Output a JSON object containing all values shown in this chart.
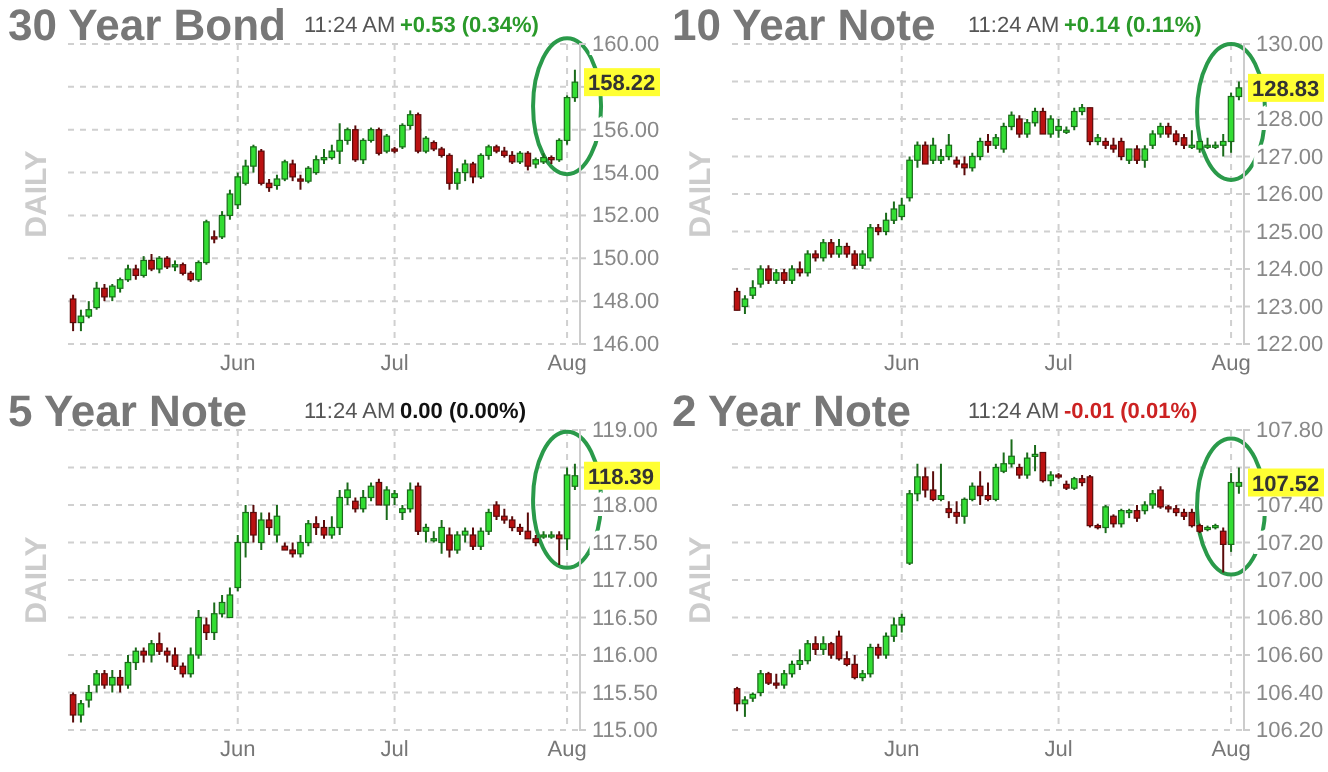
{
  "chart_data": [
    {
      "type": "candlestick",
      "title": "30 Year Bond",
      "grid": true,
      "annotations": [
        "11:24 AM",
        "+0.53 (0.34%)",
        "DAILY",
        {
          "text": "158.22",
          "y": 158.22
        }
      ],
      "categories": [
        null,
        null,
        null,
        null,
        null,
        null,
        null,
        null,
        null,
        null,
        null,
        null,
        null,
        null,
        null,
        null,
        null,
        null,
        null,
        null,
        null,
        "Jun",
        null,
        null,
        null,
        null,
        null,
        null,
        null,
        null,
        null,
        null,
        null,
        null,
        null,
        null,
        null,
        null,
        null,
        null,
        null,
        "Jul",
        null,
        null,
        null,
        null,
        null,
        null,
        null,
        null,
        null,
        null,
        null,
        null,
        null,
        null,
        null,
        null,
        null,
        null,
        null,
        null,
        null,
        "Aug",
        null
      ],
      "ylim": [
        146,
        160
      ],
      "yticks": [
        {
          "value": 146,
          "label": "146.00"
        },
        {
          "value": 148,
          "label": "148.00"
        },
        {
          "value": 150,
          "label": "150.00"
        },
        {
          "value": 152,
          "label": "152.00"
        },
        {
          "value": 154,
          "label": "154.00"
        },
        {
          "value": 156,
          "label": "156.00"
        },
        {
          "value": 158,
          "label": null
        },
        {
          "value": 160,
          "label": "160.00"
        }
      ],
      "ohlc": [
        [
          148.1,
          148.3,
          146.6,
          147.0
        ],
        [
          147.0,
          147.6,
          146.6,
          147.3
        ],
        [
          147.3,
          148.0,
          147.2,
          147.6
        ],
        [
          147.7,
          148.9,
          147.6,
          148.6
        ],
        [
          148.6,
          148.8,
          148.0,
          148.2
        ],
        [
          148.2,
          148.8,
          148.0,
          148.7
        ],
        [
          148.6,
          149.1,
          148.4,
          149.0
        ],
        [
          149.0,
          149.7,
          148.9,
          149.5
        ],
        [
          149.5,
          149.7,
          149.0,
          149.2
        ],
        [
          149.2,
          150.1,
          149.1,
          149.9
        ],
        [
          149.9,
          150.2,
          149.4,
          149.5
        ],
        [
          149.5,
          150.1,
          149.3,
          150.0
        ],
        [
          150.0,
          150.1,
          149.5,
          149.6
        ],
        [
          149.6,
          149.9,
          149.4,
          149.7
        ],
        [
          149.7,
          149.8,
          149.2,
          149.3
        ],
        [
          149.3,
          149.4,
          148.9,
          149.0
        ],
        [
          149.0,
          149.9,
          148.9,
          149.8
        ],
        [
          149.8,
          151.8,
          149.7,
          151.7
        ],
        [
          151.0,
          151.3,
          150.7,
          150.9
        ],
        [
          151.0,
          152.2,
          150.9,
          152.0
        ],
        [
          152.0,
          153.2,
          151.8,
          153.0
        ],
        [
          152.5,
          154.0,
          152.3,
          153.8
        ],
        [
          153.5,
          154.6,
          153.4,
          154.3
        ],
        [
          154.3,
          155.3,
          154.0,
          155.2
        ],
        [
          155.0,
          155.1,
          153.4,
          153.5
        ],
        [
          153.5,
          153.7,
          153.1,
          153.3
        ],
        [
          153.4,
          153.9,
          153.2,
          153.7
        ],
        [
          153.7,
          154.6,
          153.6,
          154.5
        ],
        [
          154.4,
          154.6,
          153.6,
          153.8
        ],
        [
          153.7,
          153.9,
          153.2,
          153.6
        ],
        [
          153.6,
          154.3,
          153.5,
          154.2
        ],
        [
          154.0,
          154.8,
          153.9,
          154.6
        ],
        [
          154.6,
          155.1,
          154.4,
          154.7
        ],
        [
          154.7,
          155.3,
          154.6,
          155.0
        ],
        [
          155.0,
          156.3,
          154.4,
          155.5
        ],
        [
          155.5,
          156.1,
          155.3,
          156.0
        ],
        [
          156.0,
          156.2,
          154.5,
          154.6
        ],
        [
          154.6,
          155.6,
          154.4,
          155.5
        ],
        [
          155.5,
          156.1,
          155.4,
          156.0
        ],
        [
          156.0,
          156.1,
          154.8,
          154.9
        ],
        [
          155.0,
          155.8,
          154.9,
          155.7
        ],
        [
          155.1,
          155.2,
          154.9,
          155.0
        ],
        [
          155.2,
          156.3,
          155.1,
          156.2
        ],
        [
          156.2,
          156.9,
          156.0,
          156.7
        ],
        [
          156.7,
          156.8,
          154.9,
          155.0
        ],
        [
          155.0,
          155.7,
          154.9,
          155.6
        ],
        [
          155.4,
          155.5,
          155.0,
          155.1
        ],
        [
          155.1,
          155.2,
          154.7,
          154.8
        ],
        [
          154.8,
          154.9,
          153.2,
          153.5
        ],
        [
          153.5,
          154.2,
          153.2,
          154.0
        ],
        [
          154.0,
          154.6,
          153.6,
          154.4
        ],
        [
          154.4,
          154.5,
          153.5,
          153.8
        ],
        [
          153.8,
          154.9,
          153.7,
          154.8
        ],
        [
          154.8,
          155.3,
          154.6,
          155.2
        ],
        [
          155.2,
          155.3,
          154.9,
          155.0
        ],
        [
          155.0,
          155.2,
          154.7,
          154.8
        ],
        [
          154.8,
          155.0,
          154.4,
          154.5
        ],
        [
          154.5,
          155.0,
          154.4,
          154.9
        ],
        [
          154.9,
          155.0,
          154.1,
          154.3
        ],
        [
          154.4,
          154.7,
          154.2,
          154.6
        ],
        [
          154.5,
          154.9,
          154.4,
          154.7
        ],
        [
          154.7,
          154.8,
          154.4,
          154.6
        ],
        [
          154.6,
          155.6,
          154.5,
          155.5
        ],
        [
          155.5,
          157.6,
          155.3,
          157.5
        ],
        [
          157.5,
          158.8,
          157.3,
          158.22
        ]
      ]
    },
    {
      "type": "candlestick",
      "title": "10 Year Note",
      "grid": true,
      "annotations": [
        "11:24 AM",
        "+0.14 (0.11%)",
        "DAILY",
        {
          "text": "128.83",
          "y": 128.83
        }
      ],
      "categories": [
        null,
        null,
        null,
        null,
        null,
        null,
        null,
        null,
        null,
        null,
        null,
        null,
        null,
        null,
        null,
        null,
        null,
        null,
        null,
        null,
        null,
        "Jun",
        null,
        null,
        null,
        null,
        null,
        null,
        null,
        null,
        null,
        null,
        null,
        null,
        null,
        null,
        null,
        null,
        null,
        null,
        null,
        "Jul",
        null,
        null,
        null,
        null,
        null,
        null,
        null,
        null,
        null,
        null,
        null,
        null,
        null,
        null,
        null,
        null,
        null,
        null,
        null,
        null,
        null,
        "Aug",
        null
      ],
      "ylim": [
        122,
        130
      ],
      "yticks": [
        {
          "value": 122,
          "label": "122.00"
        },
        {
          "value": 123,
          "label": "123.00"
        },
        {
          "value": 124,
          "label": "124.00"
        },
        {
          "value": 125,
          "label": "125.00"
        },
        {
          "value": 126,
          "label": "126.00"
        },
        {
          "value": 127,
          "label": "127.00"
        },
        {
          "value": 128,
          "label": "128.00"
        },
        {
          "value": 129,
          "label": null
        },
        {
          "value": 130,
          "label": "130.00"
        }
      ],
      "ohlc": [
        [
          123.4,
          123.5,
          122.9,
          122.9
        ],
        [
          123.0,
          123.3,
          122.8,
          123.2
        ],
        [
          123.3,
          123.7,
          123.2,
          123.5
        ],
        [
          123.6,
          124.1,
          123.5,
          124.0
        ],
        [
          124.0,
          124.1,
          123.6,
          123.7
        ],
        [
          123.7,
          124.0,
          123.6,
          123.9
        ],
        [
          123.9,
          124.0,
          123.6,
          123.7
        ],
        [
          123.7,
          124.1,
          123.6,
          124.0
        ],
        [
          124.0,
          124.2,
          123.8,
          123.9
        ],
        [
          123.9,
          124.5,
          123.8,
          124.4
        ],
        [
          124.4,
          124.5,
          124.2,
          124.3
        ],
        [
          124.3,
          124.8,
          124.2,
          124.7
        ],
        [
          124.7,
          124.8,
          124.3,
          124.4
        ],
        [
          124.4,
          124.8,
          124.3,
          124.6
        ],
        [
          124.6,
          124.7,
          124.3,
          124.4
        ],
        [
          124.4,
          124.5,
          124.0,
          124.1
        ],
        [
          124.1,
          124.5,
          124.0,
          124.4
        ],
        [
          124.3,
          125.2,
          124.2,
          125.1
        ],
        [
          125.1,
          125.2,
          124.9,
          125.0
        ],
        [
          125.0,
          125.5,
          124.9,
          125.3
        ],
        [
          125.3,
          125.8,
          125.2,
          125.6
        ],
        [
          125.4,
          125.9,
          125.3,
          125.7
        ],
        [
          125.9,
          127.0,
          125.8,
          126.9
        ],
        [
          126.9,
          127.4,
          126.7,
          127.3
        ],
        [
          127.3,
          127.4,
          126.8,
          126.8
        ],
        [
          126.9,
          127.5,
          126.8,
          127.3
        ],
        [
          126.9,
          127.2,
          126.8,
          127.0
        ],
        [
          127.0,
          127.6,
          126.9,
          127.3
        ],
        [
          126.9,
          127.0,
          126.7,
          126.8
        ],
        [
          126.8,
          127.0,
          126.5,
          126.7
        ],
        [
          126.7,
          127.1,
          126.6,
          127.0
        ],
        [
          127.0,
          127.5,
          126.9,
          127.4
        ],
        [
          127.4,
          127.6,
          127.1,
          127.3
        ],
        [
          127.3,
          127.6,
          127.2,
          127.5
        ],
        [
          127.2,
          127.9,
          127.1,
          127.8
        ],
        [
          127.8,
          128.2,
          127.7,
          128.1
        ],
        [
          128.0,
          128.1,
          127.5,
          127.6
        ],
        [
          127.6,
          128.0,
          127.5,
          127.9
        ],
        [
          127.9,
          128.3,
          127.8,
          128.2
        ],
        [
          128.2,
          128.3,
          127.6,
          127.6
        ],
        [
          127.6,
          128.1,
          127.5,
          128.0
        ],
        [
          127.7,
          128.0,
          127.5,
          127.8
        ],
        [
          127.7,
          127.8,
          127.6,
          127.7
        ],
        [
          127.8,
          128.3,
          127.7,
          128.2
        ],
        [
          128.2,
          128.4,
          128.1,
          128.3
        ],
        [
          128.3,
          128.3,
          127.3,
          127.4
        ],
        [
          127.4,
          127.6,
          127.3,
          127.5
        ],
        [
          127.4,
          127.5,
          127.2,
          127.3
        ],
        [
          127.3,
          127.5,
          127.1,
          127.2
        ],
        [
          127.4,
          127.5,
          126.9,
          127.0
        ],
        [
          126.9,
          127.2,
          126.8,
          127.2
        ],
        [
          127.2,
          127.3,
          126.8,
          126.9
        ],
        [
          126.9,
          127.3,
          126.7,
          127.2
        ],
        [
          127.3,
          127.7,
          127.2,
          127.6
        ],
        [
          127.6,
          127.9,
          127.5,
          127.8
        ],
        [
          127.8,
          127.9,
          127.5,
          127.6
        ],
        [
          127.6,
          127.7,
          127.3,
          127.4
        ],
        [
          127.5,
          127.6,
          127.2,
          127.3
        ],
        [
          127.3,
          127.7,
          127.2,
          127.3
        ],
        [
          127.2,
          127.4,
          127.1,
          127.4
        ],
        [
          127.3,
          127.5,
          127.2,
          127.3
        ],
        [
          127.3,
          127.4,
          127.2,
          127.3
        ],
        [
          127.3,
          127.6,
          127.0,
          127.4
        ],
        [
          127.4,
          128.7,
          127.1,
          128.6
        ],
        [
          128.6,
          129.0,
          128.5,
          128.83
        ]
      ]
    },
    {
      "type": "candlestick",
      "title": "5 Year Note",
      "grid": true,
      "annotations": [
        "11:24 AM",
        "0.00 (0.00%)",
        "DAILY",
        {
          "text": "118.39",
          "y": 118.39
        }
      ],
      "categories": [
        null,
        null,
        null,
        null,
        null,
        null,
        null,
        null,
        null,
        null,
        null,
        null,
        null,
        null,
        null,
        null,
        null,
        null,
        null,
        null,
        null,
        "Jun",
        null,
        null,
        null,
        null,
        null,
        null,
        null,
        null,
        null,
        null,
        null,
        null,
        null,
        null,
        null,
        null,
        null,
        null,
        null,
        "Jul",
        null,
        null,
        null,
        null,
        null,
        null,
        null,
        null,
        null,
        null,
        null,
        null,
        null,
        null,
        null,
        null,
        null,
        null,
        null,
        null,
        null,
        "Aug",
        null
      ],
      "ylim": [
        115,
        119
      ],
      "yticks": [
        {
          "value": 115,
          "label": "115.00"
        },
        {
          "value": 115.5,
          "label": "115.50"
        },
        {
          "value": 116,
          "label": "116.00"
        },
        {
          "value": 116.5,
          "label": "116.50"
        },
        {
          "value": 117,
          "label": "117.00"
        },
        {
          "value": 117.5,
          "label": "117.50"
        },
        {
          "value": 118,
          "label": "118.00"
        },
        {
          "value": 118.5,
          "label": null
        },
        {
          "value": 119,
          "label": "119.00"
        }
      ],
      "ohlc": [
        [
          115.47,
          115.5,
          115.1,
          115.2
        ],
        [
          115.2,
          115.4,
          115.1,
          115.35
        ],
        [
          115.4,
          115.6,
          115.3,
          115.5
        ],
        [
          115.6,
          115.8,
          115.5,
          115.75
        ],
        [
          115.75,
          115.8,
          115.55,
          115.6
        ],
        [
          115.6,
          115.8,
          115.5,
          115.7
        ],
        [
          115.7,
          115.8,
          115.5,
          115.6
        ],
        [
          115.6,
          116.0,
          115.55,
          115.9
        ],
        [
          115.9,
          116.1,
          115.8,
          116.05
        ],
        [
          116.05,
          116.1,
          115.9,
          116.0
        ],
        [
          116.0,
          116.2,
          115.9,
          116.15
        ],
        [
          116.15,
          116.3,
          116.0,
          116.05
        ],
        [
          116.05,
          116.1,
          115.9,
          116.0
        ],
        [
          116.0,
          116.1,
          115.8,
          115.85
        ],
        [
          115.85,
          115.9,
          115.7,
          115.75
        ],
        [
          115.75,
          116.1,
          115.7,
          116.0
        ],
        [
          116.0,
          116.6,
          115.95,
          116.5
        ],
        [
          116.4,
          116.5,
          116.2,
          116.3
        ],
        [
          116.3,
          116.7,
          116.2,
          116.55
        ],
        [
          116.55,
          116.8,
          116.5,
          116.7
        ],
        [
          116.5,
          116.9,
          116.5,
          116.8
        ],
        [
          116.9,
          117.6,
          116.85,
          117.5
        ],
        [
          117.5,
          118.0,
          117.3,
          117.9
        ],
        [
          117.9,
          118.0,
          117.5,
          117.6
        ],
        [
          117.5,
          117.9,
          117.4,
          117.8
        ],
        [
          117.8,
          117.9,
          117.6,
          117.7
        ],
        [
          117.6,
          118.0,
          117.5,
          117.85
        ],
        [
          117.45,
          117.5,
          117.4,
          117.4
        ],
        [
          117.4,
          117.5,
          117.3,
          117.35
        ],
        [
          117.35,
          117.6,
          117.3,
          117.5
        ],
        [
          117.5,
          117.8,
          117.45,
          117.75
        ],
        [
          117.75,
          117.85,
          117.6,
          117.7
        ],
        [
          117.7,
          117.8,
          117.55,
          117.6
        ],
        [
          117.6,
          117.85,
          117.55,
          117.7
        ],
        [
          117.7,
          118.2,
          117.6,
          118.1
        ],
        [
          118.1,
          118.3,
          118.0,
          118.2
        ],
        [
          118.05,
          118.1,
          117.9,
          117.95
        ],
        [
          117.95,
          118.2,
          117.9,
          118.1
        ],
        [
          118.1,
          118.3,
          118.05,
          118.25
        ],
        [
          118.3,
          118.35,
          118.0,
          118.0
        ],
        [
          118.0,
          118.25,
          117.8,
          118.2
        ],
        [
          118.1,
          118.2,
          118.0,
          118.15
        ],
        [
          117.9,
          118.0,
          117.8,
          117.95
        ],
        [
          117.95,
          118.3,
          117.9,
          118.2
        ],
        [
          118.25,
          118.3,
          117.6,
          117.65
        ],
        [
          117.65,
          117.75,
          117.5,
          117.7
        ],
        [
          117.55,
          117.65,
          117.5,
          117.55
        ],
        [
          117.5,
          117.8,
          117.35,
          117.7
        ],
        [
          117.6,
          117.7,
          117.3,
          117.4
        ],
        [
          117.4,
          117.65,
          117.35,
          117.6
        ],
        [
          117.6,
          117.7,
          117.5,
          117.65
        ],
        [
          117.6,
          117.7,
          117.4,
          117.45
        ],
        [
          117.45,
          117.7,
          117.4,
          117.65
        ],
        [
          117.65,
          117.95,
          117.6,
          117.9
        ],
        [
          118.0,
          118.05,
          117.8,
          117.85
        ],
        [
          117.85,
          117.95,
          117.75,
          117.8
        ],
        [
          117.8,
          117.85,
          117.65,
          117.7
        ],
        [
          117.7,
          117.75,
          117.6,
          117.65
        ],
        [
          117.65,
          117.9,
          117.55,
          117.55
        ],
        [
          117.55,
          117.6,
          117.45,
          117.5
        ],
        [
          117.6,
          117.65,
          117.55,
          117.6
        ],
        [
          117.6,
          117.65,
          117.55,
          117.6
        ],
        [
          117.6,
          117.65,
          117.2,
          117.55
        ],
        [
          117.55,
          118.5,
          117.4,
          118.4
        ],
        [
          118.25,
          118.55,
          118.2,
          118.39
        ]
      ]
    },
    {
      "type": "candlestick",
      "title": "2 Year Note",
      "grid": true,
      "annotations": [
        "11:24 AM",
        "-0.01 (0.01%)",
        "DAILY",
        {
          "text": "107.52",
          "y": 107.52
        }
      ],
      "categories": [
        null,
        null,
        null,
        null,
        null,
        null,
        null,
        null,
        null,
        null,
        null,
        null,
        null,
        null,
        null,
        null,
        null,
        null,
        null,
        null,
        null,
        "Jun",
        null,
        null,
        null,
        null,
        null,
        null,
        null,
        null,
        null,
        null,
        null,
        null,
        null,
        null,
        null,
        null,
        null,
        null,
        null,
        "Jul",
        null,
        null,
        null,
        null,
        null,
        null,
        null,
        null,
        null,
        null,
        null,
        null,
        null,
        null,
        null,
        null,
        null,
        null,
        null,
        null,
        null,
        "Aug",
        null
      ],
      "ylim": [
        106.2,
        107.8
      ],
      "yticks": [
        {
          "value": 106.2,
          "label": "106.20"
        },
        {
          "value": 106.4,
          "label": "106.40"
        },
        {
          "value": 106.6,
          "label": "106.60"
        },
        {
          "value": 106.8,
          "label": "106.80"
        },
        {
          "value": 107,
          "label": "107.00"
        },
        {
          "value": 107.2,
          "label": "107.20"
        },
        {
          "value": 107.4,
          "label": "107.40"
        },
        {
          "value": 107.6,
          "label": null
        },
        {
          "value": 107.8,
          "label": "107.80"
        }
      ],
      "ohlc": [
        [
          106.42,
          106.43,
          106.3,
          106.34
        ],
        [
          106.34,
          106.38,
          106.27,
          106.36
        ],
        [
          106.37,
          106.4,
          106.35,
          106.39
        ],
        [
          106.4,
          106.52,
          106.38,
          106.5
        ],
        [
          106.5,
          106.51,
          106.44,
          106.45
        ],
        [
          106.45,
          106.5,
          106.42,
          106.44
        ],
        [
          106.44,
          106.52,
          106.42,
          106.5
        ],
        [
          106.5,
          106.57,
          106.48,
          106.55
        ],
        [
          106.55,
          106.63,
          106.52,
          106.57
        ],
        [
          106.57,
          106.68,
          106.55,
          106.66
        ],
        [
          106.66,
          106.7,
          106.6,
          106.63
        ],
        [
          106.63,
          106.7,
          106.6,
          106.66
        ],
        [
          106.66,
          106.67,
          106.58,
          106.6
        ],
        [
          106.7,
          106.73,
          106.57,
          106.58
        ],
        [
          106.58,
          106.62,
          106.54,
          106.55
        ],
        [
          106.55,
          106.6,
          106.47,
          106.48
        ],
        [
          106.48,
          106.52,
          106.46,
          106.5
        ],
        [
          106.5,
          106.66,
          106.48,
          106.64
        ],
        [
          106.64,
          106.66,
          106.58,
          106.6
        ],
        [
          106.6,
          106.72,
          106.58,
          106.7
        ],
        [
          106.7,
          106.8,
          106.67,
          106.76
        ],
        [
          106.76,
          106.82,
          106.72,
          106.8
        ],
        [
          107.09,
          107.48,
          107.08,
          107.46
        ],
        [
          107.46,
          107.62,
          107.42,
          107.55
        ],
        [
          107.55,
          107.6,
          107.44,
          107.48
        ],
        [
          107.48,
          107.58,
          107.42,
          107.43
        ],
        [
          107.43,
          107.62,
          107.42,
          107.45
        ],
        [
          107.38,
          107.42,
          107.33,
          107.36
        ],
        [
          107.36,
          107.42,
          107.3,
          107.34
        ],
        [
          107.34,
          107.44,
          107.3,
          107.43
        ],
        [
          107.43,
          107.52,
          107.42,
          107.5
        ],
        [
          107.5,
          107.58,
          107.4,
          107.45
        ],
        [
          107.45,
          107.52,
          107.42,
          107.43
        ],
        [
          107.43,
          107.62,
          107.42,
          107.6
        ],
        [
          107.58,
          107.68,
          107.57,
          107.62
        ],
        [
          107.62,
          107.75,
          107.6,
          107.66
        ],
        [
          107.6,
          107.62,
          107.54,
          107.56
        ],
        [
          107.56,
          107.68,
          107.54,
          107.65
        ],
        [
          107.66,
          107.72,
          107.58,
          107.67
        ],
        [
          107.68,
          107.68,
          107.52,
          107.53
        ],
        [
          107.53,
          107.58,
          107.5,
          107.56
        ],
        [
          107.56,
          107.57,
          107.54,
          107.55
        ],
        [
          107.51,
          107.53,
          107.48,
          107.49
        ],
        [
          107.49,
          107.55,
          107.48,
          107.54
        ],
        [
          107.54,
          107.56,
          107.5,
          107.52
        ],
        [
          107.55,
          107.56,
          107.28,
          107.29
        ],
        [
          107.29,
          107.3,
          107.27,
          107.28
        ],
        [
          107.28,
          107.4,
          107.25,
          107.39
        ],
        [
          107.34,
          107.35,
          107.28,
          107.3
        ],
        [
          107.3,
          107.38,
          107.28,
          107.37
        ],
        [
          107.36,
          107.38,
          107.33,
          107.37
        ],
        [
          107.37,
          107.4,
          107.31,
          107.33
        ],
        [
          107.37,
          107.42,
          107.35,
          107.4
        ],
        [
          107.4,
          107.48,
          107.38,
          107.46
        ],
        [
          107.48,
          107.5,
          107.38,
          107.39
        ],
        [
          107.39,
          107.4,
          107.36,
          107.38
        ],
        [
          107.38,
          107.4,
          107.34,
          107.36
        ],
        [
          107.36,
          107.38,
          107.32,
          107.34
        ],
        [
          107.36,
          107.38,
          107.28,
          107.29
        ],
        [
          107.29,
          107.3,
          107.25,
          107.26
        ],
        [
          107.27,
          107.29,
          107.26,
          107.28
        ],
        [
          107.28,
          107.3,
          107.27,
          107.29
        ],
        [
          107.26,
          107.28,
          107.04,
          107.19
        ],
        [
          107.19,
          107.57,
          107.15,
          107.52
        ],
        [
          107.5,
          107.6,
          107.46,
          107.52
        ]
      ]
    }
  ]
}
